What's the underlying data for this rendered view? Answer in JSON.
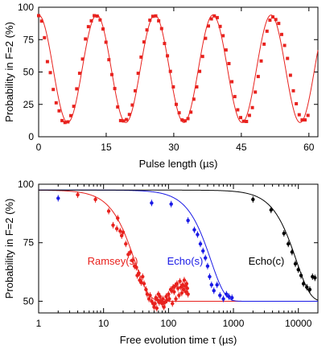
{
  "chart_data": [
    {
      "type": "line",
      "xlabel": "Pulse length (µs)",
      "ylabel": "Probability in F=2 (%)",
      "xlim": [
        0,
        62
      ],
      "ylim": [
        0,
        100
      ],
      "xticks": [
        0,
        15,
        30,
        45,
        60
      ],
      "yticks": [
        0,
        25,
        50,
        75,
        100
      ],
      "x_tick_labels": [
        "0",
        "15",
        "30",
        "45",
        "60"
      ],
      "y_tick_labels": [
        "0",
        "25",
        "50",
        "75",
        "100"
      ],
      "grid": false,
      "color": "#e8221e",
      "fit": {
        "type": "cosine",
        "offset": 52.5,
        "amplitude": 41.5,
        "period_us": 12.9,
        "phase_at_zero": "maximum"
      },
      "series": [
        {
          "values": [
            [
              0.0,
              93.5
            ],
            [
              0.65,
              89.3
            ],
            [
              1.3,
              76.5
            ],
            [
              1.95,
              58.0
            ],
            [
              2.6,
              49.5
            ],
            [
              3.25,
              36.5
            ],
            [
              3.9,
              26.2
            ],
            [
              4.55,
              20.0
            ],
            [
              5.2,
              12.5
            ],
            [
              5.85,
              11.0
            ],
            [
              6.5,
              11.5
            ],
            [
              7.15,
              16.3
            ],
            [
              7.8,
              23.5
            ],
            [
              8.45,
              37.0
            ],
            [
              9.1,
              49.0
            ],
            [
              9.75,
              60.0
            ],
            [
              10.4,
              75.5
            ],
            [
              11.05,
              85.0
            ],
            [
              11.7,
              89.5
            ],
            [
              12.35,
              93.5
            ],
            [
              13.0,
              93.2
            ],
            [
              13.65,
              90.2
            ],
            [
              14.3,
              83.2
            ],
            [
              14.95,
              73.0
            ],
            [
              15.6,
              59.5
            ],
            [
              16.25,
              48.0
            ],
            [
              16.9,
              37.2
            ],
            [
              17.55,
              23.0
            ],
            [
              18.2,
              12.5
            ],
            [
              18.85,
              12.2
            ],
            [
              19.5,
              13.3
            ],
            [
              20.15,
              17.2
            ],
            [
              20.8,
              24.5
            ],
            [
              21.45,
              35.5
            ],
            [
              22.1,
              49.0
            ],
            [
              22.75,
              61.5
            ],
            [
              23.4,
              73.2
            ],
            [
              24.05,
              82.5
            ],
            [
              24.7,
              90.0
            ],
            [
              25.35,
              93.0
            ],
            [
              26.0,
              93.3
            ],
            [
              26.65,
              89.5
            ],
            [
              27.3,
              83.5
            ],
            [
              27.95,
              72.0
            ],
            [
              28.6,
              62.5
            ],
            [
              29.25,
              50.5
            ],
            [
              29.9,
              38.5
            ],
            [
              30.55,
              25.0
            ],
            [
              31.2,
              18.5
            ],
            [
              31.85,
              13.0
            ],
            [
              32.5,
              12.3
            ],
            [
              33.15,
              14.0
            ],
            [
              33.8,
              19.0
            ],
            [
              34.45,
              29.0
            ],
            [
              35.1,
              38.5
            ],
            [
              35.75,
              50.5
            ],
            [
              36.4,
              62.0
            ],
            [
              37.05,
              76.0
            ],
            [
              37.7,
              85.5
            ],
            [
              38.35,
              91.0
            ],
            [
              39.0,
              93.3
            ],
            [
              39.65,
              92.0
            ],
            [
              40.3,
              85.2
            ],
            [
              40.95,
              78.0
            ],
            [
              41.6,
              67.0
            ],
            [
              42.25,
              56.5
            ],
            [
              42.9,
              42.5
            ],
            [
              43.55,
              31.0
            ],
            [
              44.2,
              20.8
            ],
            [
              44.85,
              14.8
            ],
            [
              45.5,
              12.0
            ],
            [
              46.15,
              11.8
            ],
            [
              46.8,
              16.5
            ],
            [
              47.45,
              22.5
            ],
            [
              48.1,
              34.5
            ],
            [
              48.75,
              46.5
            ],
            [
              49.4,
              58.5
            ],
            [
              50.05,
              71.5
            ],
            [
              50.7,
              81.5
            ],
            [
              51.35,
              90.0
            ],
            [
              52.0,
              92.5
            ],
            [
              52.65,
              90.5
            ],
            [
              53.3,
              87.5
            ],
            [
              53.95,
              79.0
            ],
            [
              54.6,
              70.5
            ],
            [
              55.25,
              60.5
            ],
            [
              55.9,
              47.5
            ],
            [
              56.55,
              35.5
            ],
            [
              57.2,
              25.5
            ],
            [
              57.85,
              17.0
            ],
            [
              58.5,
              13.0
            ],
            [
              59.15,
              13.0
            ],
            [
              59.8,
              16.5
            ]
          ]
        }
      ]
    },
    {
      "type": "scatter",
      "xlabel": "Free evolution time τ (µs)",
      "ylabel": "Probability in F=2 (%)",
      "xscale": "log",
      "xlim": [
        1,
        20000
      ],
      "ylim": [
        45,
        100
      ],
      "xticks": [
        1,
        10,
        100,
        1000,
        10000
      ],
      "yticks": [
        50,
        75,
        100
      ],
      "x_tick_labels": [
        "1",
        "10",
        "100",
        "1000",
        "10000"
      ],
      "y_tick_labels": [
        "50",
        "75",
        "100"
      ],
      "grid": false,
      "series": [
        {
          "name": "Ramsey(s)",
          "color": "#e8221e",
          "fit": {
            "type": "gaussian_decay",
            "y_start": 97.5,
            "y_end": 50,
            "tau_us": 30
          },
          "points": [
            [
              4,
              95.5
            ],
            [
              7.5,
              93.5
            ],
            [
              12,
              88.5
            ],
            [
              14,
              82.5
            ],
            [
              16,
              81.0
            ],
            [
              16.5,
              85.5
            ],
            [
              18,
              80.0
            ],
            [
              19,
              78.0
            ],
            [
              20,
              79.5
            ],
            [
              22,
              74.5
            ],
            [
              24,
              70.0
            ],
            [
              26,
              71.0
            ],
            [
              28,
              67.5
            ],
            [
              30,
              65.0
            ],
            [
              32,
              64.5
            ],
            [
              33,
              61.0
            ],
            [
              35,
              62.0
            ],
            [
              36,
              59.0
            ],
            [
              38,
              58.0
            ],
            [
              40,
              60.5
            ],
            [
              42,
              57.5
            ],
            [
              45,
              55.0
            ],
            [
              47,
              53.0
            ],
            [
              50,
              51.0
            ],
            [
              52,
              52.5
            ],
            [
              55,
              50.0
            ],
            [
              58,
              49.0
            ],
            [
              60,
              47.5
            ],
            [
              62,
              49.0
            ],
            [
              64,
              51.5
            ],
            [
              66,
              47.0
            ],
            [
              68,
              50.5
            ],
            [
              70,
              53.0
            ],
            [
              72,
              49.5
            ],
            [
              74,
              52.0
            ],
            [
              76,
              50.0
            ],
            [
              80,
              49.0
            ],
            [
              82,
              51.0
            ],
            [
              85,
              47.5
            ],
            [
              88,
              49.5
            ],
            [
              92,
              52.0
            ],
            [
              95,
              50.5
            ],
            [
              100,
              53.0
            ],
            [
              103,
              51.0
            ],
            [
              108,
              55.0
            ],
            [
              112,
              54.5
            ],
            [
              115,
              49.0
            ],
            [
              118,
              56.0
            ],
            [
              122,
              54.0
            ],
            [
              126,
              56.5
            ],
            [
              130,
              51.0
            ],
            [
              135,
              57.5
            ],
            [
              140,
              55.5
            ],
            [
              145,
              52.5
            ],
            [
              150,
              58.5
            ],
            [
              155,
              56.0
            ],
            [
              160,
              53.5
            ],
            [
              165,
              57.0
            ],
            [
              170,
              55.0
            ],
            [
              175,
              59.0
            ],
            [
              180,
              56.5
            ],
            [
              185,
              54.0
            ],
            [
              190,
              57.5
            ],
            [
              195,
              55.5
            ],
            [
              200,
              53.0
            ]
          ]
        },
        {
          "name": "Echo(s)",
          "color": "#1a1ae6",
          "fit": {
            "type": "gaussian_decay",
            "y_start": 97.5,
            "y_end": 50,
            "tau_us": 450
          },
          "points": [
            [
              2,
              94.0
            ],
            [
              55,
              92.0
            ],
            [
              110,
              91.5
            ],
            [
              200,
              84.5
            ],
            [
              250,
              80.5
            ],
            [
              280,
              78.5
            ],
            [
              310,
              74.5
            ],
            [
              340,
              71.5
            ],
            [
              370,
              68.5
            ],
            [
              400,
              65.0
            ],
            [
              430,
              60.5
            ],
            [
              460,
              57.0
            ],
            [
              500,
              54.5
            ],
            [
              560,
              57.0
            ],
            [
              620,
              52.5
            ],
            [
              700,
              51.0
            ],
            [
              780,
              53.0
            ],
            [
              850,
              52.0
            ],
            [
              950,
              51.5
            ]
          ]
        },
        {
          "name": "Echo(c)",
          "color": "#000000",
          "fit": {
            "type": "gaussian_decay",
            "y_start": 97.5,
            "y_end": 50,
            "tau_us": 9300
          },
          "points": [
            [
              2000,
              93.5
            ],
            [
              3800,
              89.0
            ],
            [
              6000,
              79.0
            ],
            [
              7000,
              74.5
            ],
            [
              8000,
              71.0
            ],
            [
              9000,
              66.0
            ],
            [
              10000,
              63.5
            ],
            [
              11000,
              61.0
            ],
            [
              12000,
              57.5
            ],
            [
              13500,
              56.0
            ],
            [
              15000,
              55.0
            ],
            [
              16500,
              60.5
            ],
            [
              18000,
              60.0
            ]
          ]
        }
      ]
    }
  ]
}
